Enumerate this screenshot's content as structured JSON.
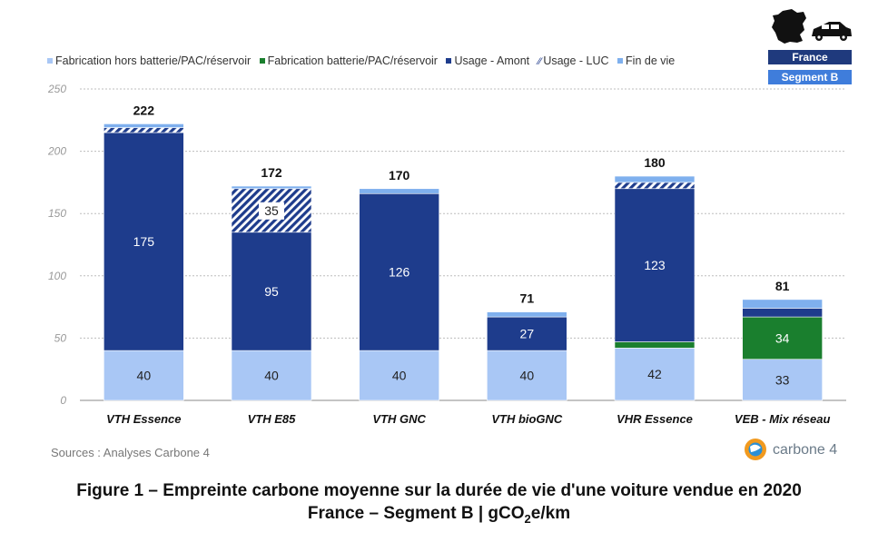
{
  "legend": [
    {
      "label": "Fabrication hors batterie/PAC/réservoir",
      "color": "#a9c7f5"
    },
    {
      "label": "Fabrication batterie/PAC/réservoir",
      "color": "#1a7f2e"
    },
    {
      "label": "Usage - Amont",
      "color": "#1e3c8c"
    },
    {
      "label": "Usage - LUC",
      "color": "#1e3c8c"
    },
    {
      "label": "Fin de vie",
      "color": "#7fb0ee"
    }
  ],
  "badges": {
    "country": "France",
    "segment": "Segment B"
  },
  "sources": "Sources : Analyses Carbone 4",
  "logo_text": "carbone 4",
  "figure_title_line1": "Figure 1 – Empreinte carbone moyenne sur la durée de vie d'une voiture vendue en 2020",
  "figure_title_line2_pre": "France – Segment B | gCO",
  "figure_title_line2_sub": "2",
  "figure_title_line2_post": "e/km",
  "chart_data": {
    "type": "bar",
    "stacked": true,
    "ylim": [
      0,
      250
    ],
    "yticks": [
      0,
      50,
      100,
      150,
      200,
      250
    ],
    "grid": true,
    "legend_position": "top",
    "categories": [
      "VTH Essence",
      "VTH E85",
      "VTH GNC",
      "VTH bioGNC",
      "VHR Essence",
      "VEB - Mix réseau"
    ],
    "totals": [
      222,
      172,
      170,
      71,
      180,
      81
    ],
    "series": [
      {
        "name": "Fabrication hors batterie/PAC/réservoir",
        "color": "#a9c7f5",
        "values": [
          40,
          40,
          40,
          40,
          42,
          33
        ],
        "labels": [
          "40",
          "40",
          "40",
          "40",
          "42",
          "33"
        ]
      },
      {
        "name": "Fabrication batterie/PAC/réservoir",
        "color": "#1a7f2e",
        "values": [
          0,
          0,
          0,
          0,
          5,
          34
        ],
        "labels": [
          "",
          "",
          "",
          "",
          "",
          "34"
        ]
      },
      {
        "name": "Usage - Amont",
        "color": "#1e3c8c",
        "values": [
          175,
          95,
          126,
          27,
          123,
          7
        ],
        "labels": [
          "175",
          "95",
          "126",
          "27",
          "123",
          ""
        ]
      },
      {
        "name": "Usage - LUC",
        "color": "#1e3c8c",
        "hatched": true,
        "values": [
          4,
          35,
          0,
          0,
          5,
          0
        ],
        "labels": [
          "",
          "35",
          "",
          "",
          "",
          ""
        ]
      },
      {
        "name": "Fin de vie",
        "color": "#7fb0ee",
        "values": [
          3,
          2,
          4,
          4,
          5,
          7
        ],
        "labels": [
          "",
          "",
          "",
          "",
          "",
          ""
        ]
      }
    ]
  }
}
